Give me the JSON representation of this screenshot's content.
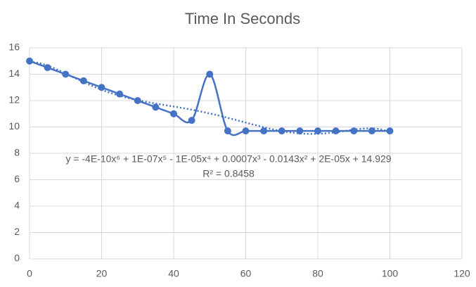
{
  "chart_data": {
    "type": "scatter",
    "title": "Time In Seconds",
    "x": [
      0,
      5,
      10,
      15,
      20,
      25,
      30,
      35,
      40,
      45,
      50,
      55,
      60,
      65,
      70,
      75,
      80,
      85,
      90,
      95,
      100
    ],
    "series": [
      {
        "color": "#4472c4",
        "values": [
          15,
          14.5,
          14,
          13.5,
          13,
          12.5,
          12,
          11.5,
          11,
          10.5,
          14,
          9.7,
          9.7,
          9.7,
          9.7,
          9.7,
          9.7,
          9.7,
          9.7,
          9.7,
          9.7
        ]
      }
    ],
    "smooth": true,
    "trendline": {
      "type": "polynomial",
      "order": 6,
      "equation": "y = -4E-10x⁶ + 1E-07x⁵ - 1E-05x⁴ + 0.0007x³ - 0.0143x² + 2E-05x + 14.929",
      "r_squared": "R² = 0.8458"
    },
    "xlim": [
      0,
      120
    ],
    "xticks": [
      0,
      20,
      40,
      60,
      80,
      100,
      120
    ],
    "ylim": [
      0,
      16
    ],
    "yticks": [
      0,
      2,
      4,
      6,
      8,
      10,
      12,
      14,
      16
    ],
    "grid": true
  }
}
